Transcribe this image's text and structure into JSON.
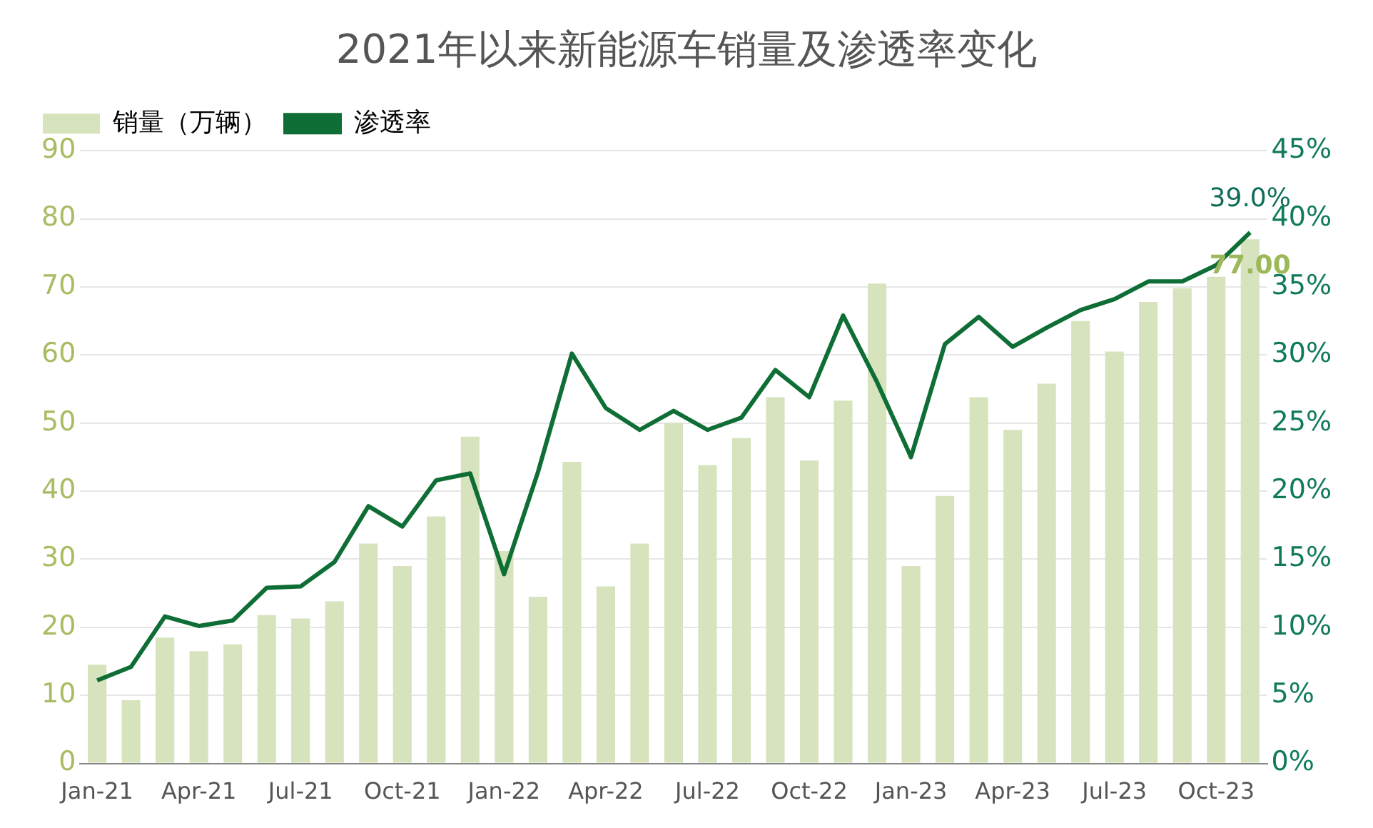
{
  "chart_data": {
    "type": "bar",
    "title": "2021年以来新能源车销量及渗透率变化",
    "categories": [
      "Jan-21",
      null,
      null,
      "Apr-21",
      null,
      null,
      "Jul-21",
      null,
      null,
      "Oct-21",
      null,
      null,
      "Jan-22",
      null,
      null,
      "Apr-22",
      null,
      null,
      "Jul-22",
      null,
      null,
      "Oct-22",
      null,
      null,
      "Jan-23",
      null,
      null,
      "Apr-23",
      null,
      null,
      "Jul-23",
      null,
      null,
      "Oct-23",
      null
    ],
    "series": [
      {
        "name": "销量（万辆）",
        "color": "#d7e3bd",
        "values": [
          14.5,
          9.3,
          18.5,
          16.5,
          17.5,
          21.8,
          21.3,
          23.8,
          32.3,
          29,
          36.3,
          48,
          31.2,
          24.5,
          44.3,
          26,
          32.3,
          50,
          43.8,
          47.8,
          53.8,
          44.5,
          53.3,
          70.5,
          29,
          39.3,
          53.8,
          49,
          55.8,
          65,
          60.5,
          67.8,
          69.8,
          71.5,
          77
        ],
        "value_labels": [
          null,
          null,
          null,
          null,
          null,
          null,
          null,
          null,
          null,
          null,
          null,
          null,
          null,
          null,
          null,
          null,
          null,
          null,
          null,
          null,
          null,
          null,
          null,
          null,
          null,
          null,
          null,
          null,
          null,
          null,
          null,
          null,
          null,
          null,
          "77.00"
        ]
      },
      {
        "name": "渗透率",
        "type": "line",
        "axis": "y2",
        "color": "#0f6e35",
        "values": [
          6.1,
          7.1,
          10.8,
          10.1,
          10.5,
          12.9,
          13,
          14.8,
          18.9,
          17.4,
          20.8,
          21.3,
          13.9,
          21.4,
          30.1,
          26.1,
          24.5,
          25.9,
          24.5,
          25.4,
          28.9,
          26.9,
          32.9,
          28,
          22.5,
          30.8,
          32.8,
          30.6,
          32,
          33.3,
          34.1,
          35.4,
          35.4,
          36.6,
          39.0
        ],
        "value_labels": [
          null,
          null,
          null,
          null,
          null,
          null,
          null,
          null,
          null,
          null,
          null,
          null,
          null,
          null,
          null,
          null,
          null,
          null,
          null,
          null,
          null,
          null,
          null,
          null,
          null,
          null,
          null,
          null,
          null,
          null,
          null,
          null,
          null,
          null,
          "39.0%"
        ]
      }
    ],
    "ylim": [
      0,
      90
    ],
    "yticks": [
      0,
      10,
      20,
      30,
      40,
      50,
      60,
      70,
      80,
      90
    ],
    "y2lim": [
      0,
      45
    ],
    "y2ticks": [
      {
        "value": 0,
        "label": "0%"
      },
      {
        "value": 5,
        "label": "5%"
      },
      {
        "value": 10,
        "label": "10%"
      },
      {
        "value": 15,
        "label": "15%"
      },
      {
        "value": 20,
        "label": "20%"
      },
      {
        "value": 25,
        "label": "25%"
      },
      {
        "value": 30,
        "label": "30%"
      },
      {
        "value": 35,
        "label": "35%"
      },
      {
        "value": 40,
        "label": "40%"
      },
      {
        "value": 45,
        "label": "45%"
      }
    ],
    "grid": "y",
    "legend": "top left",
    "marker": "none",
    "line_style": "solid"
  }
}
